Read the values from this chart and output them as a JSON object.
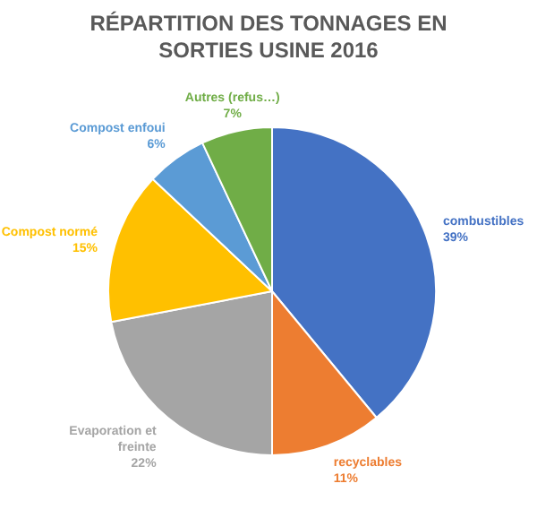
{
  "chart_data": {
    "type": "pie",
    "title": "RÉPARTITION DES TONNAGES EN SORTIES USINE 2016",
    "categories": [
      "combustibles",
      "recyclables",
      "Evaporation et freinte",
      "Compost normé",
      "Compost enfoui",
      "Autres (refus…)"
    ],
    "values": [
      39,
      11,
      22,
      15,
      6,
      7
    ],
    "colors": [
      "#4472c4",
      "#ed7d31",
      "#a5a5a5",
      "#ffc000",
      "#5b9bd5",
      "#70ad47"
    ],
    "value_labels": [
      "39%",
      "11%",
      "22%",
      "15%",
      "6%",
      "7%"
    ],
    "legend": false
  }
}
